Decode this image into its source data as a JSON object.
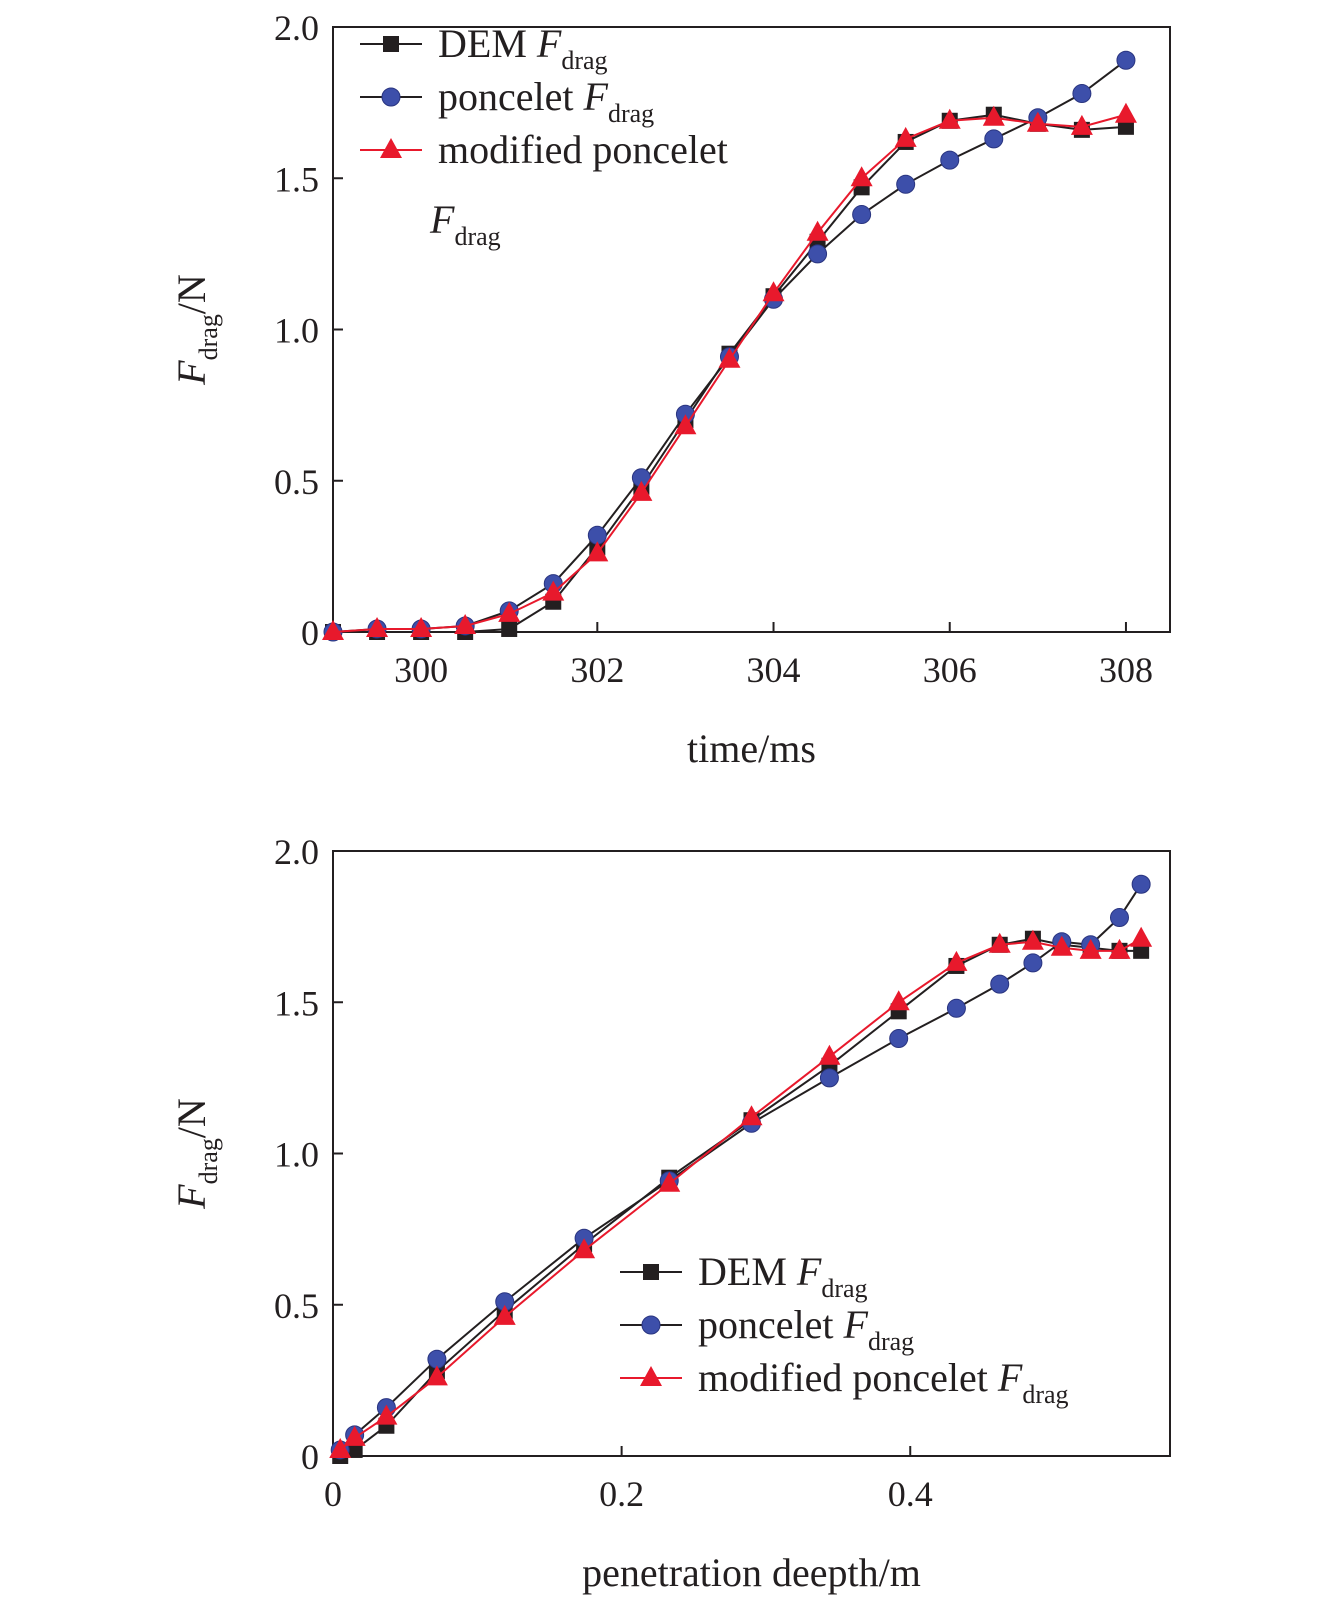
{
  "chart_data": [
    {
      "type": "line",
      "xlabel": "time/ms",
      "ylabel": "F_drag/N",
      "ylabel_main": "F",
      "ylabel_sub": "drag",
      "ylabel_unit": "/N",
      "xlim": [
        299,
        308.5
      ],
      "ylim": [
        0,
        2.0
      ],
      "x_ticks": [
        300,
        302,
        304,
        306,
        308
      ],
      "x_tick_labels": [
        "300",
        "302",
        "304",
        "306",
        "308"
      ],
      "y_ticks": [
        0,
        0.5,
        1.0,
        1.5,
        2.0
      ],
      "y_tick_labels": [
        "0",
        "0.5",
        "1.0",
        "1.5",
        "2.0"
      ],
      "legend_position": "top-left",
      "series": [
        {
          "name": "DEM F_drag",
          "label_main": "DEM ",
          "label_italic": "F",
          "label_sub": "drag",
          "marker": "square",
          "color": "#231f20",
          "marker_color": "#231f20",
          "x": [
            299,
            299.5,
            300,
            300.5,
            301,
            301.5,
            302,
            302.5,
            303,
            303.5,
            304,
            304.5,
            305,
            305.5,
            306,
            306.5,
            307,
            307.5,
            308
          ],
          "y": [
            0,
            0,
            0,
            0,
            0.01,
            0.1,
            0.28,
            0.48,
            0.7,
            0.92,
            1.11,
            1.29,
            1.47,
            1.62,
            1.69,
            1.71,
            1.68,
            1.66,
            1.67
          ]
        },
        {
          "name": "poncelet F_drag",
          "label_main": "poncelet ",
          "label_italic": "F",
          "label_sub": "drag",
          "marker": "circle",
          "color": "#231f20",
          "marker_color": "#3d4faa",
          "x": [
            299,
            299.5,
            300,
            300.5,
            301,
            301.5,
            302,
            302.5,
            303,
            303.5,
            304,
            304.5,
            305,
            305.5,
            306,
            306.5,
            307,
            307.5,
            308
          ],
          "y": [
            0,
            0.01,
            0.01,
            0.02,
            0.07,
            0.16,
            0.32,
            0.51,
            0.72,
            0.91,
            1.1,
            1.25,
            1.38,
            1.48,
            1.56,
            1.63,
            1.7,
            1.78,
            1.89
          ]
        },
        {
          "name": "modified poncelet F_drag",
          "label_main": "modified poncelet",
          "label_italic": "F",
          "label_sub": "drag",
          "label_wrapped": true,
          "marker": "triangle",
          "color": "#e8192c",
          "marker_color": "#e8192c",
          "x": [
            299,
            299.5,
            300,
            300.5,
            301,
            301.5,
            302,
            302.5,
            303,
            303.5,
            304,
            304.5,
            305,
            305.5,
            306,
            306.5,
            307,
            307.5,
            308
          ],
          "y": [
            0,
            0.01,
            0.01,
            0.02,
            0.06,
            0.13,
            0.26,
            0.46,
            0.68,
            0.9,
            1.12,
            1.32,
            1.5,
            1.63,
            1.69,
            1.7,
            1.68,
            1.67,
            1.71
          ]
        }
      ]
    },
    {
      "type": "line",
      "xlabel": "penetration deepth/m",
      "ylabel": "F_drag/N",
      "ylabel_main": "F",
      "ylabel_sub": "drag",
      "ylabel_unit": "/N",
      "xlim": [
        0,
        0.58
      ],
      "ylim": [
        0,
        2.0
      ],
      "x_ticks": [
        0,
        0.2,
        0.4
      ],
      "x_tick_labels": [
        "0",
        "0.2",
        "0.4"
      ],
      "y_ticks": [
        0,
        0.5,
        1.0,
        1.5,
        2.0
      ],
      "y_tick_labels": [
        "0",
        "0.5",
        "1.0",
        "1.5",
        "2.0"
      ],
      "legend_position": "bottom-right",
      "series": [
        {
          "name": "DEM F_drag",
          "label_main": "DEM ",
          "label_italic": "F",
          "label_sub": "drag",
          "marker": "square",
          "color": "#231f20",
          "marker_color": "#231f20",
          "x": [
            0.005,
            0.015,
            0.037,
            0.072,
            0.119,
            0.174,
            0.233,
            0.29,
            0.344,
            0.392,
            0.432,
            0.462,
            0.485,
            0.505,
            0.525,
            0.545,
            0.56
          ],
          "y": [
            0.0,
            0.02,
            0.1,
            0.28,
            0.48,
            0.7,
            0.92,
            1.11,
            1.29,
            1.47,
            1.62,
            1.69,
            1.71,
            1.69,
            1.68,
            1.67,
            1.67
          ]
        },
        {
          "name": "poncelet F_drag",
          "label_main": "poncelet ",
          "label_italic": "F",
          "label_sub": "drag",
          "marker": "circle",
          "color": "#231f20",
          "marker_color": "#3d4faa",
          "x": [
            0.005,
            0.015,
            0.037,
            0.072,
            0.119,
            0.174,
            0.233,
            0.29,
            0.344,
            0.392,
            0.432,
            0.462,
            0.485,
            0.505,
            0.525,
            0.545,
            0.56
          ],
          "y": [
            0.02,
            0.07,
            0.16,
            0.32,
            0.51,
            0.72,
            0.91,
            1.1,
            1.25,
            1.38,
            1.48,
            1.56,
            1.63,
            1.7,
            1.69,
            1.78,
            1.89
          ]
        },
        {
          "name": "modified poncelet F_drag",
          "label_main": "modified poncelet ",
          "label_italic": "F",
          "label_sub": "drag",
          "label_wrapped": false,
          "marker": "triangle",
          "color": "#e8192c",
          "marker_color": "#e8192c",
          "x": [
            0.005,
            0.015,
            0.037,
            0.072,
            0.119,
            0.174,
            0.233,
            0.29,
            0.344,
            0.392,
            0.432,
            0.462,
            0.485,
            0.505,
            0.525,
            0.545,
            0.56
          ],
          "y": [
            0.02,
            0.06,
            0.13,
            0.26,
            0.46,
            0.68,
            0.9,
            1.12,
            1.32,
            1.5,
            1.63,
            1.69,
            1.7,
            1.68,
            1.67,
            1.67,
            1.71
          ]
        }
      ]
    }
  ]
}
